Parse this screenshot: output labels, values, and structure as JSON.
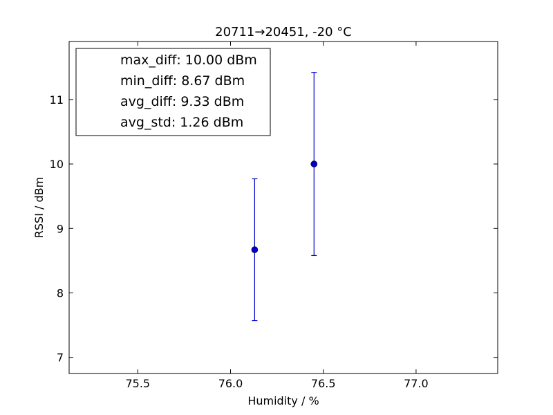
{
  "chart_data": {
    "type": "scatter",
    "title": "20711→20451, -20 °C",
    "xlabel": "Humidity / %",
    "ylabel": "RSSI / dBm",
    "xlim": [
      75.13,
      77.44
    ],
    "ylim": [
      6.75,
      11.9
    ],
    "xticks": [
      75.5,
      76.0,
      76.5,
      77.0
    ],
    "xtick_labels": [
      "75.5",
      "76.0",
      "76.5",
      "77.0"
    ],
    "yticks": [
      7,
      8,
      9,
      10,
      11
    ],
    "ytick_labels": [
      "7",
      "8",
      "9",
      "10",
      "11"
    ],
    "grid": false,
    "series": [
      {
        "color": "#0000cc",
        "marker": "circle",
        "points": [
          {
            "x": 76.13,
            "y": 8.67,
            "yerr": 1.1
          },
          {
            "x": 76.45,
            "y": 10.0,
            "yerr": 1.42
          }
        ]
      }
    ],
    "legend": {
      "placement": "upper-left",
      "entries": [
        "max_diff: 10.00 dBm",
        "min_diff: 8.67 dBm",
        "avg_diff: 9.33 dBm",
        "avg_std: 1.26 dBm"
      ]
    }
  }
}
